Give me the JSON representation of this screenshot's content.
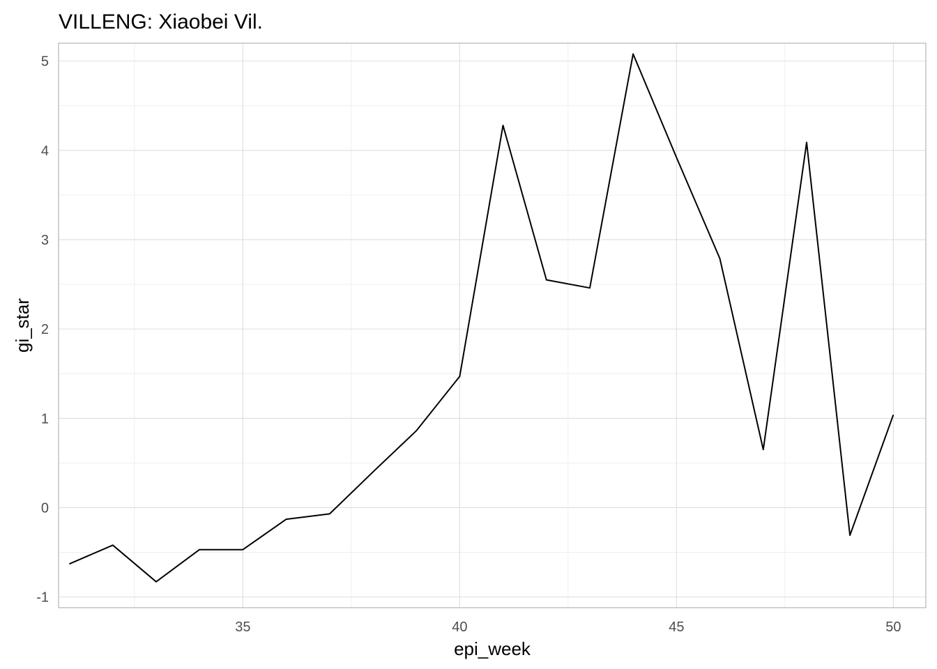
{
  "chart_data": {
    "type": "line",
    "title": "VILLENG: Xiaobei Vil.",
    "xlabel": "epi_week",
    "ylabel": "gi_star",
    "xlim": [
      30.75,
      50.75
    ],
    "ylim": [
      -1.12,
      5.2
    ],
    "x_ticks": [
      35,
      40,
      45,
      50
    ],
    "y_ticks": [
      -1,
      0,
      1,
      2,
      3,
      4,
      5
    ],
    "x_tick_labels": [
      "35",
      "40",
      "45",
      "50"
    ],
    "y_tick_labels": [
      "-1",
      "0",
      "1",
      "2",
      "3",
      "4",
      "5"
    ],
    "grid": true,
    "legend": "none",
    "series": [
      {
        "color": "#000000",
        "x": [
          31,
          32,
          33,
          34,
          35,
          36,
          37,
          38,
          39,
          40,
          41,
          42,
          43,
          44,
          45,
          46,
          47,
          48,
          49,
          50
        ],
        "y": [
          -0.63,
          -0.42,
          -0.83,
          -0.47,
          -0.47,
          -0.13,
          -0.07,
          0.4,
          0.86,
          1.47,
          4.28,
          2.55,
          2.46,
          5.08,
          3.92,
          2.79,
          0.65,
          4.09,
          -0.31,
          1.04
        ]
      }
    ]
  }
}
